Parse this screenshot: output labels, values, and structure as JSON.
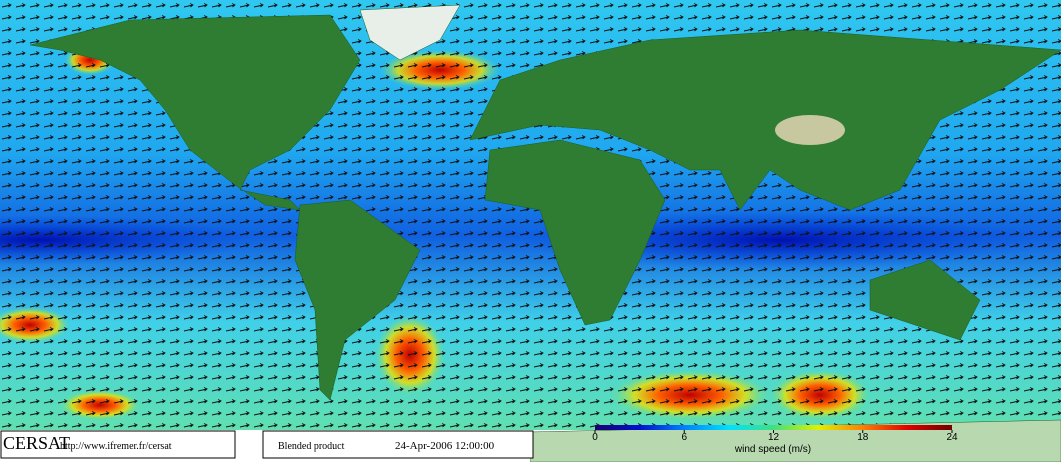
{
  "header": {
    "logo": "CERSAT",
    "url": "http://www.ifremer.fr/cersat",
    "product": "Blended product",
    "date": "24-Apr-2006 12:00:00"
  },
  "colorbar": {
    "label": "wind speed (m/s)",
    "range": [
      0,
      24
    ],
    "ticks": [
      0,
      6,
      12,
      18,
      24
    ],
    "colors": [
      "#1a0070",
      "#0010d0",
      "#0080ff",
      "#00e0ff",
      "#40e080",
      "#e0f000",
      "#ff8000",
      "#e00000",
      "#700000"
    ]
  }
}
